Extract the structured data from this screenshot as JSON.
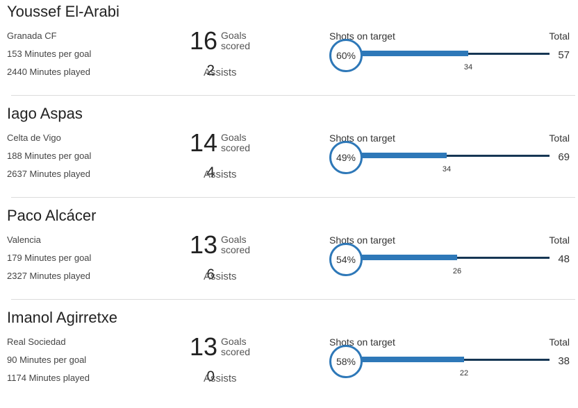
{
  "labels": {
    "goals_line1": "Goals",
    "goals_line2": "scored",
    "assists": "Assists",
    "shots_on_target": "Shots on target",
    "total": "Total"
  },
  "colors": {
    "bar_fill": "#2e78b8",
    "bar_track": "#163654",
    "circle_border": "#2e78b8"
  },
  "chart_data": {
    "type": "bar",
    "players": [
      {
        "name": "Youssef El-Arabi",
        "team": "Granada CF",
        "minutes_per_goal": "153 Minutes per goal",
        "minutes_played": "2440 Minutes played",
        "goals": 16,
        "assists": 2,
        "shots_on_target": 34,
        "total_shots": 57,
        "pct": "60%"
      },
      {
        "name": "Iago Aspas",
        "team": "Celta de Vigo",
        "minutes_per_goal": "188 Minutes per goal",
        "minutes_played": "2637 Minutes played",
        "goals": 14,
        "assists": 4,
        "shots_on_target": 34,
        "total_shots": 69,
        "pct": "49%"
      },
      {
        "name": "Paco Alcácer",
        "team": "Valencia",
        "minutes_per_goal": "179 Minutes per goal",
        "minutes_played": "2327 Minutes played",
        "goals": 13,
        "assists": 6,
        "shots_on_target": 26,
        "total_shots": 48,
        "pct": "54%"
      },
      {
        "name": "Imanol Agirretxe",
        "team": "Real Sociedad",
        "minutes_per_goal": "90 Minutes per goal",
        "minutes_played": "1174 Minutes played",
        "goals": 13,
        "assists": 0,
        "shots_on_target": 22,
        "total_shots": 38,
        "pct": "58%"
      }
    ]
  }
}
